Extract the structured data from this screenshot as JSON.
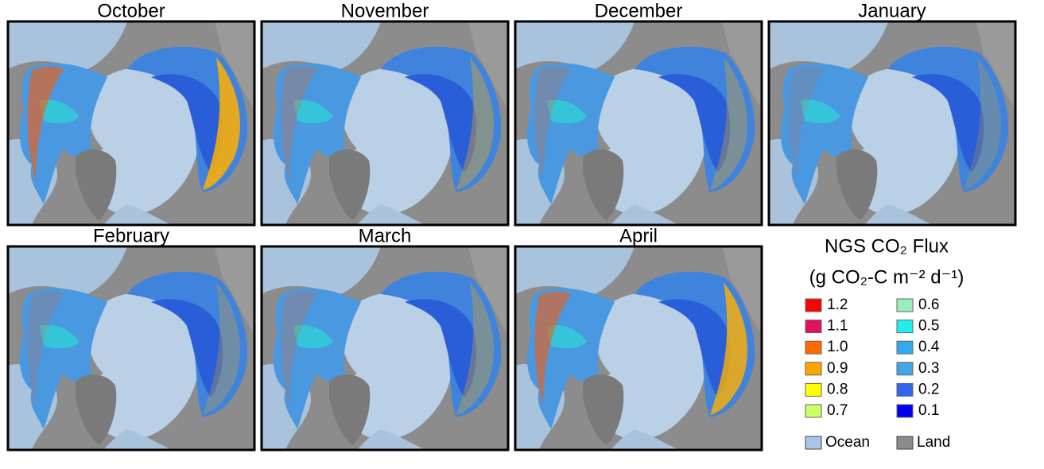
{
  "panels": [
    {
      "title": "October"
    },
    {
      "title": "November"
    },
    {
      "title": "December"
    },
    {
      "title": "January"
    },
    {
      "title": "February"
    },
    {
      "title": "March"
    },
    {
      "title": "April"
    }
  ],
  "legend": {
    "title": "NGS CO₂ Flux",
    "units": "(g CO₂-C m⁻² d⁻¹)",
    "items": [
      {
        "label": "1.2",
        "color": "#ff0000"
      },
      {
        "label": "1.1",
        "color": "#e0115f"
      },
      {
        "label": "1.0",
        "color": "#ff6a00"
      },
      {
        "label": "0.9",
        "color": "#ffa500"
      },
      {
        "label": "0.8",
        "color": "#ffff00"
      },
      {
        "label": "0.7",
        "color": "#ccff66"
      },
      {
        "label": "0.6",
        "color": "#99eebb"
      },
      {
        "label": "0.5",
        "color": "#22eeee"
      },
      {
        "label": "0.4",
        "color": "#33aaee"
      },
      {
        "label": "0.3",
        "color": "#44a6e8"
      },
      {
        "label": "0.2",
        "color": "#3366ee"
      },
      {
        "label": "0.1",
        "color": "#0000ee"
      }
    ],
    "surfaces": [
      {
        "label": "Ocean",
        "color": "#a9c6e8"
      },
      {
        "label": "Land",
        "color": "#8c8c8c"
      }
    ]
  }
}
